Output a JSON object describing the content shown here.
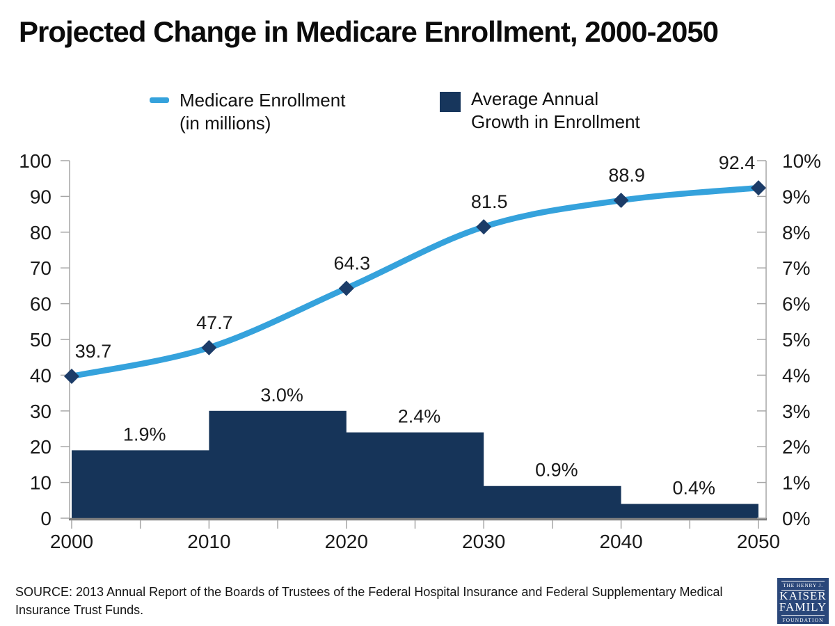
{
  "title": "Projected Change in Medicare Enrollment, 2000-2050",
  "legend": {
    "items": [
      {
        "swatch": "line",
        "color": "#35A2DC",
        "label_line1": "Medicare Enrollment",
        "label_line2": "(in millions)"
      },
      {
        "swatch": "square",
        "color": "#17365C",
        "label_line1": "Average Annual",
        "label_line2": "Growth in Enrollment"
      }
    ]
  },
  "chart_data": {
    "type": "combo",
    "title": "Projected Change in Medicare Enrollment, 2000-2050",
    "x": [
      2000,
      2010,
      2020,
      2030,
      2040,
      2050
    ],
    "series": [
      {
        "name": "Medicare Enrollment (in millions)",
        "type": "line",
        "axis": "left",
        "values": [
          39.7,
          47.7,
          64.3,
          81.5,
          88.9,
          92.4
        ],
        "labels": [
          "39.7",
          "47.7",
          "64.3",
          "81.5",
          "88.9",
          "92.4"
        ],
        "smooth": true,
        "marker": "diamond"
      },
      {
        "name": "Average Annual Growth in Enrollment",
        "type": "step-bar",
        "axis": "right",
        "spans": [
          [
            2000,
            2010
          ],
          [
            2010,
            2020
          ],
          [
            2020,
            2030
          ],
          [
            2030,
            2040
          ],
          [
            2040,
            2050
          ]
        ],
        "values": [
          1.9,
          3.0,
          2.4,
          0.9,
          0.4
        ],
        "labels": [
          "1.9%",
          "3.0%",
          "2.4%",
          "0.9%",
          "0.4%"
        ]
      }
    ],
    "left_axis": {
      "range": [
        0,
        100
      ],
      "ticks": [
        0,
        10,
        20,
        30,
        40,
        50,
        60,
        70,
        80,
        90,
        100
      ]
    },
    "right_axis": {
      "range": [
        0,
        10
      ],
      "tick_values": [
        0,
        1,
        2,
        3,
        4,
        5,
        6,
        7,
        8,
        9,
        10
      ],
      "tick_labels": [
        "0%",
        "1%",
        "2%",
        "3%",
        "4%",
        "5%",
        "6%",
        "7%",
        "8%",
        "9%",
        "10%"
      ]
    },
    "x_axis": {
      "range": [
        2000,
        2050
      ],
      "tick_labels": [
        2000,
        2010,
        2020,
        2030,
        2040,
        2050
      ],
      "minor_ticks": [
        2000,
        2005,
        2010,
        2015,
        2020,
        2025,
        2030,
        2035,
        2040,
        2045,
        2050
      ]
    },
    "grid": false,
    "legend_position": "top",
    "line_color": "#35A2DC",
    "marker_color": "#1C3C68",
    "bar_color": "#163459",
    "axis_color": "#A6A6A6",
    "baseline_color": "#7F7F7F",
    "text_color": "#1a1a1a"
  },
  "source": {
    "line1": "SOURCE: 2013 Annual Report of the Boards of Trustees of the Federal Hospital Insurance and Federal Supplementary Medical",
    "line2": "Insurance Trust Funds."
  },
  "logo": {
    "bg_color": "#2A477A",
    "tagline": "THE HENRY J.",
    "name1": "KAISER",
    "name2": "FAMILY",
    "foundation": "FOUNDATION"
  }
}
